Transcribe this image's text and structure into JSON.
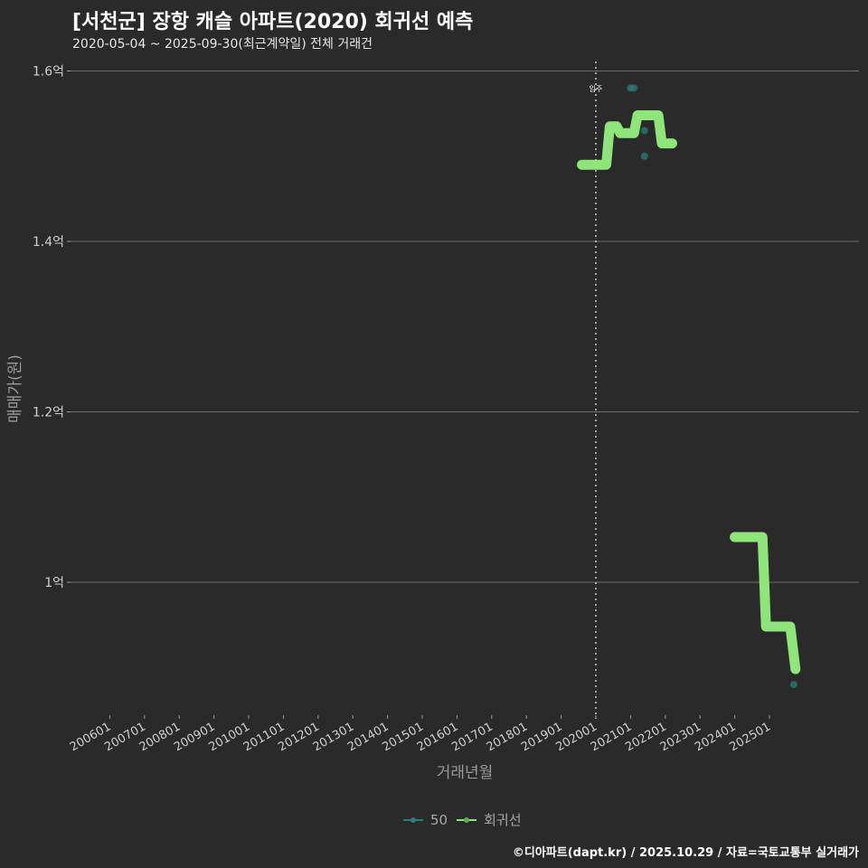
{
  "header": {
    "title": "[서천군] 장항 캐슬 아파트(2020) 회귀선 예측",
    "subtitle": "2020-05-04 ~ 2025-09-30(최근계약일) 전체 거래건"
  },
  "legend": {
    "items": [
      {
        "label": "50",
        "color": "#2e7d73"
      },
      {
        "label": "회귀선",
        "color": "#8ee57a"
      }
    ]
  },
  "caption": "©디아파트(dapt.kr) / 2025.10.29 / 자료=국토교통부 실거래가",
  "chart_data": {
    "type": "line",
    "title": "[서천군] 장항 캐슬 아파트(2020) 회귀선 예측",
    "subtitle": "2020-05-04 ~ 2025-09-30(최근계약일) 전체 거래건",
    "xlabel": "거래년월",
    "ylabel": "매매가(원)",
    "ylim": [
      0.855,
      1.615
    ],
    "y_ticks": [
      {
        "value": 1.0,
        "label": "1억"
      },
      {
        "value": 1.2,
        "label": "1.2억"
      },
      {
        "value": 1.4,
        "label": "1.4억"
      },
      {
        "value": 1.6,
        "label": "1.6억"
      }
    ],
    "x_ticks": [
      "200601",
      "200701",
      "200801",
      "200901",
      "201001",
      "201101",
      "201201",
      "201301",
      "201401",
      "201501",
      "201601",
      "201701",
      "201801",
      "201901",
      "202001",
      "202101",
      "202201",
      "202301",
      "202401",
      "202501"
    ],
    "grid": "horizontal",
    "legend_position": "bottom",
    "annotations": [
      {
        "type": "vline",
        "x": "202001",
        "label": "입주",
        "style": "dotted"
      }
    ],
    "series": [
      {
        "name": "50",
        "kind": "scatter",
        "color": "#2e7d73",
        "points": [
          {
            "x": 2020.3,
            "y": 1.49
          },
          {
            "x": 2021.0,
            "y": 1.58
          },
          {
            "x": 2021.1,
            "y": 1.58
          },
          {
            "x": 2021.4,
            "y": 1.53
          },
          {
            "x": 2021.4,
            "y": 1.5
          },
          {
            "x": 2025.7,
            "y": 0.88
          }
        ]
      },
      {
        "name": "회귀선",
        "kind": "line",
        "color": "#8ee57a",
        "segments": [
          [
            {
              "x": 2019.6,
              "y": 1.49
            },
            {
              "x": 2020.3,
              "y": 1.49
            },
            {
              "x": 2020.4,
              "y": 1.535
            },
            {
              "x": 2020.6,
              "y": 1.535
            },
            {
              "x": 2020.7,
              "y": 1.527
            },
            {
              "x": 2021.1,
              "y": 1.527
            },
            {
              "x": 2021.2,
              "y": 1.548
            },
            {
              "x": 2021.8,
              "y": 1.548
            },
            {
              "x": 2021.9,
              "y": 1.515
            },
            {
              "x": 2022.2,
              "y": 1.515
            }
          ],
          [
            {
              "x": 2024.0,
              "y": 1.053
            },
            {
              "x": 2024.8,
              "y": 1.053
            },
            {
              "x": 2024.9,
              "y": 0.948
            },
            {
              "x": 2025.6,
              "y": 0.948
            },
            {
              "x": 2025.75,
              "y": 0.898
            }
          ]
        ]
      }
    ]
  }
}
